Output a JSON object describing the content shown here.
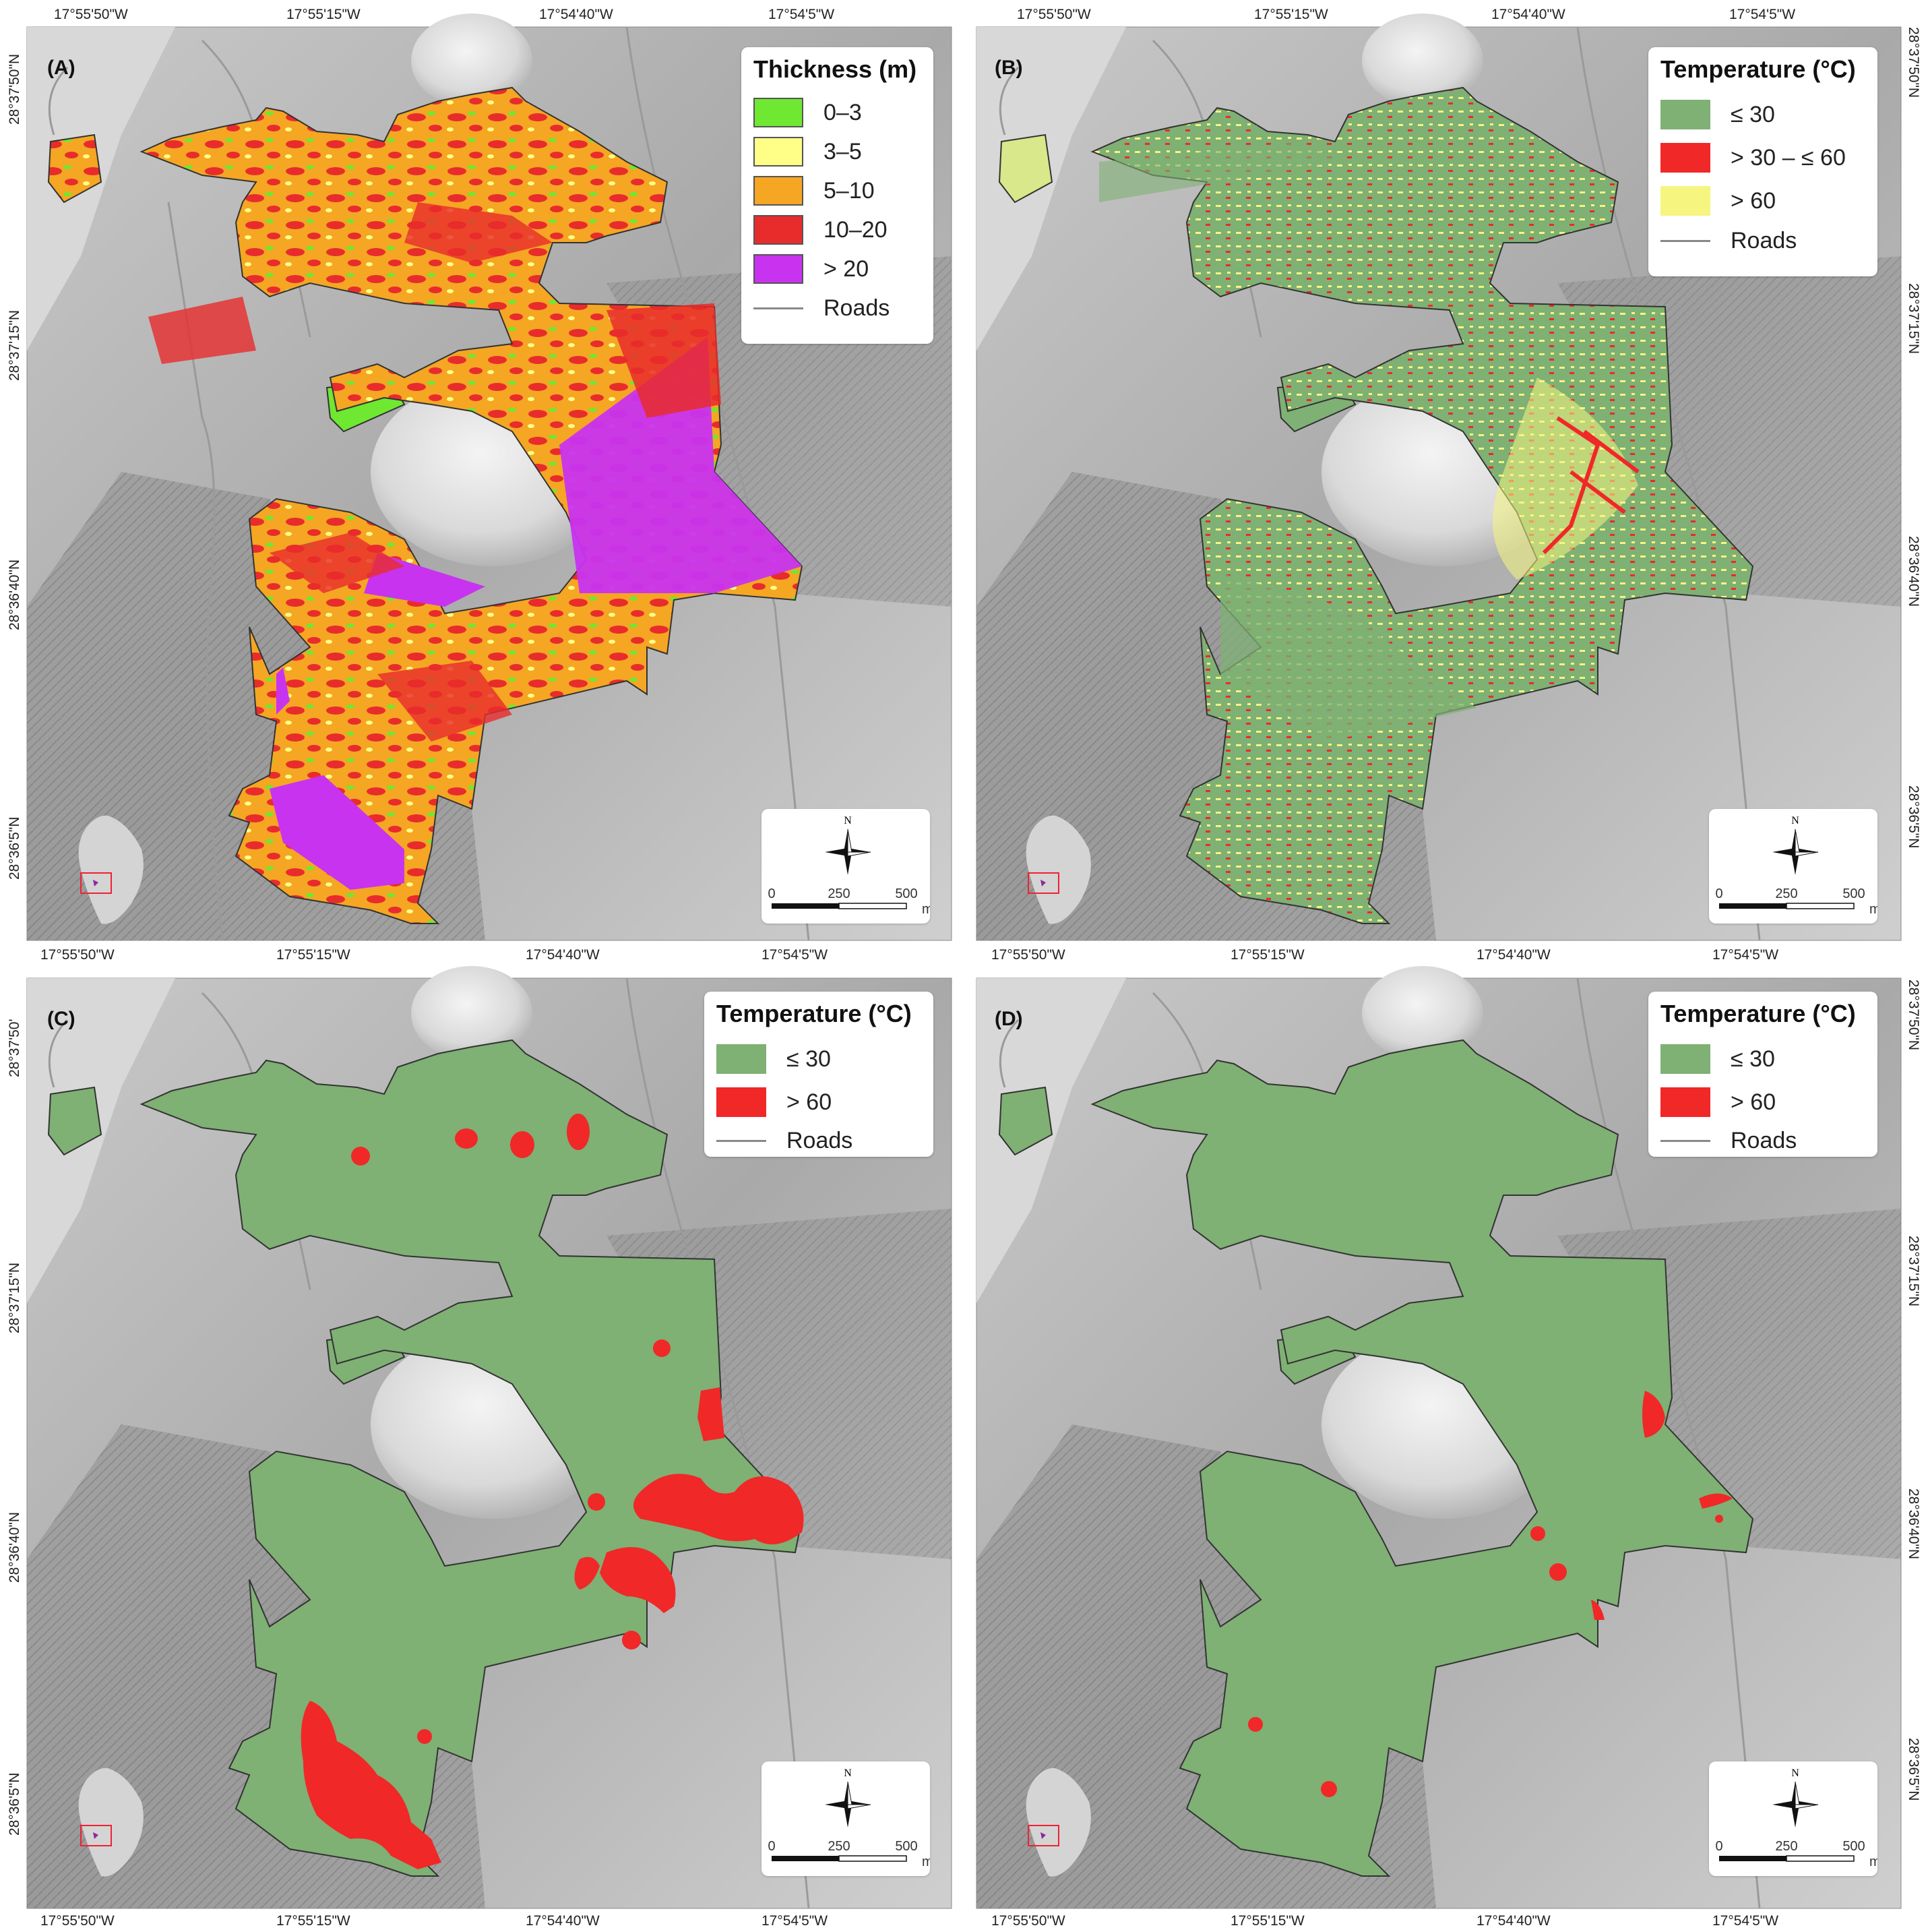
{
  "figure": {
    "panels": [
      {
        "id": "A",
        "label": "(A)",
        "legend": {
          "title": "Thickness (m)",
          "items": [
            {
              "label": "0–3",
              "color": "#6fe832"
            },
            {
              "label": "3–5",
              "color": "#ffff88"
            },
            {
              "label": "5–10",
              "color": "#f5a623"
            },
            {
              "label": "10–20",
              "color": "#e82c2c"
            },
            {
              "label": "> 20",
              "color": "#c833f0"
            }
          ],
          "roads_label": "Roads"
        }
      },
      {
        "id": "B",
        "label": "(B)",
        "legend": {
          "title": "Temperature (°C)",
          "items": [
            {
              "label": "≤ 30",
              "color": "#7fb074"
            },
            {
              "label": "> 30 – ≤ 60",
              "color": "#f02828"
            },
            {
              "label": "> 60",
              "color": "#f5f580"
            }
          ],
          "roads_label": "Roads"
        }
      },
      {
        "id": "C",
        "label": "(C)",
        "legend": {
          "title": "Temperature (°C)",
          "items": [
            {
              "label": "≤ 30",
              "color": "#7fb074"
            },
            {
              "label": "> 60",
              "color": "#f02828"
            }
          ],
          "roads_label": "Roads"
        }
      },
      {
        "id": "D",
        "label": "(D)",
        "legend": {
          "title": "Temperature (°C)",
          "items": [
            {
              "label": "≤ 30",
              "color": "#7fb074"
            },
            {
              "label": "> 60",
              "color": "#f02828"
            }
          ],
          "roads_label": "Roads"
        }
      }
    ],
    "longitude_ticks": [
      "17°55'50\"W",
      "17°55'15\"W",
      "17°54'40\"W",
      "17°54'5\"W"
    ],
    "latitude_ticks": [
      "28°37'50\"N",
      "28°37'15\"N",
      "28°36'40\"N",
      "28°36'5\"N"
    ],
    "latitude_tick_C_top": "28°37'50'",
    "scale_bar": {
      "labels": [
        "0",
        "250",
        "500"
      ],
      "unit": "m"
    },
    "north_label": "N"
  }
}
